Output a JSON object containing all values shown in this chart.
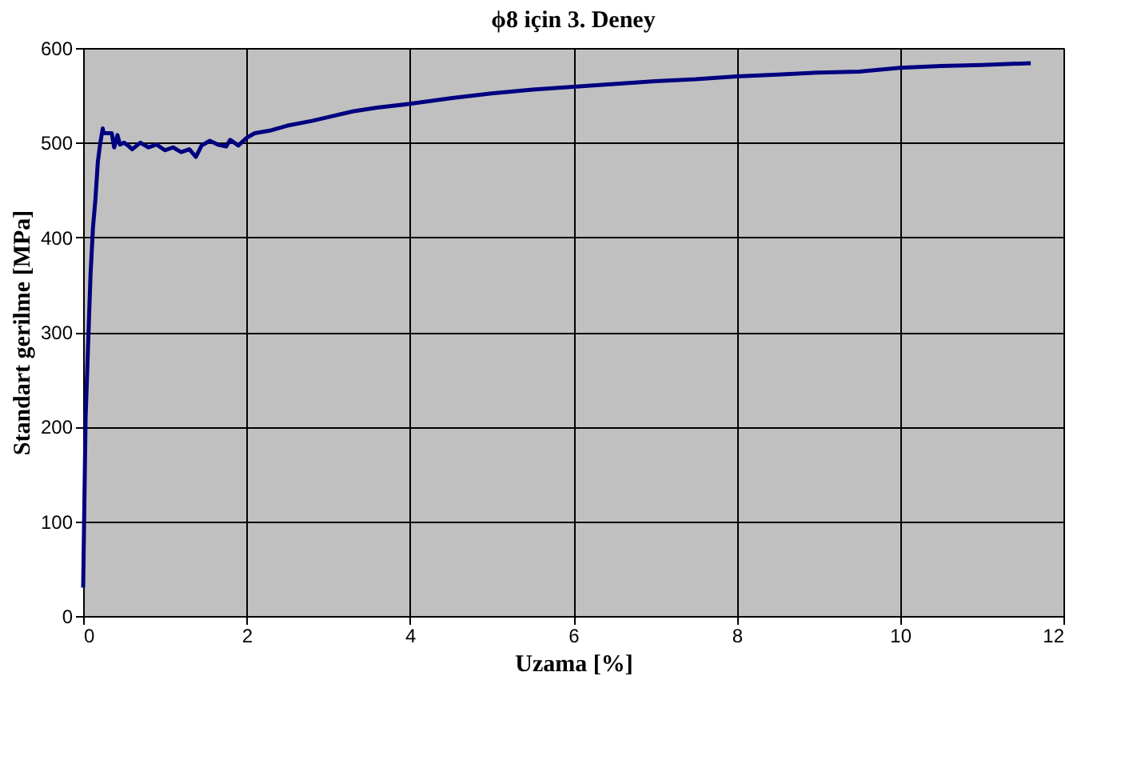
{
  "chart_data": {
    "type": "line",
    "title": "ϕ8 için 3. Deney",
    "xlabel": "Uzama [%]",
    "ylabel": "Standart gerilme [MPa]",
    "x": [
      0,
      0.01,
      0.02,
      0.03,
      0.05,
      0.07,
      0.09,
      0.12,
      0.15,
      0.18,
      0.21,
      0.24,
      0.25,
      0.35,
      0.38,
      0.42,
      0.45,
      0.5,
      0.55,
      0.6,
      0.7,
      0.8,
      0.9,
      1.0,
      1.1,
      1.2,
      1.3,
      1.38,
      1.45,
      1.55,
      1.65,
      1.75,
      1.8,
      1.9,
      2.0,
      2.1,
      2.3,
      2.5,
      2.8,
      3.0,
      3.3,
      3.6,
      4.0,
      4.5,
      5.0,
      5.5,
      6.0,
      6.5,
      7.0,
      7.5,
      8.0,
      8.5,
      9.0,
      9.5,
      10.0,
      10.5,
      11.0,
      11.6
    ],
    "values": [
      30,
      90,
      150,
      210,
      260,
      310,
      360,
      410,
      440,
      480,
      500,
      515,
      510,
      510,
      495,
      508,
      498,
      500,
      497,
      493,
      500,
      495,
      498,
      492,
      495,
      490,
      493,
      485,
      497,
      502,
      498,
      496,
      503,
      497,
      505,
      510,
      513,
      518,
      523,
      527,
      533,
      537,
      541,
      547,
      552,
      556,
      559,
      562,
      565,
      567,
      570,
      572,
      574,
      575,
      579,
      581,
      582,
      584
    ],
    "color": "#000080",
    "xlim": [
      0,
      12
    ],
    "ylim": [
      0,
      600
    ],
    "xticks": [
      0,
      2,
      4,
      6,
      8,
      10,
      12
    ],
    "yticks": [
      0,
      100,
      200,
      300,
      400,
      500,
      600
    ],
    "grid": true
  }
}
